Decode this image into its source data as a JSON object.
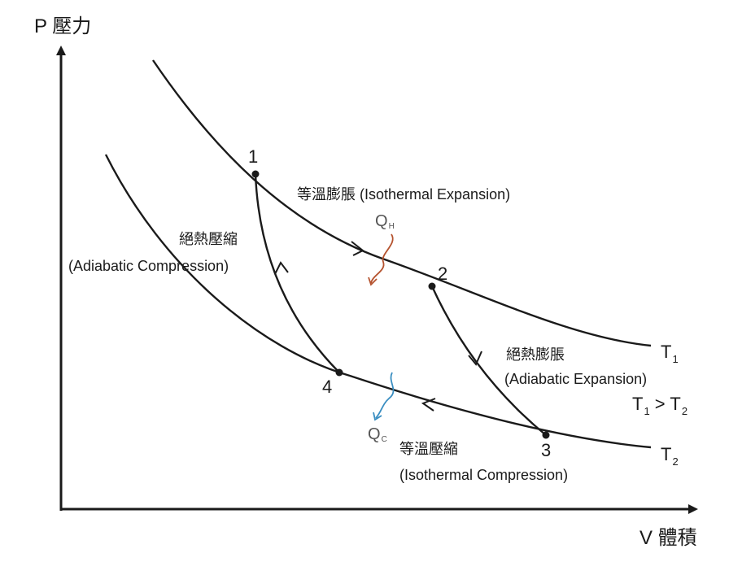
{
  "axes": {
    "y_label": "P 壓力",
    "x_label": "V 體積"
  },
  "points": {
    "p1": "1",
    "p2": "2",
    "p3": "3",
    "p4": "4"
  },
  "processes": {
    "isothermal_expansion": "等溫膨脹 (Isothermal Expansion)",
    "adiabatic_expansion_cn": "絕熱膨脹",
    "adiabatic_expansion_en": "(Adiabatic Expansion)",
    "isothermal_compression_cn": "等溫壓縮",
    "isothermal_compression_en": "(Isothermal Compression)",
    "adiabatic_compression_cn": "絕熱壓縮",
    "adiabatic_compression_en": "(Adiabatic Compression)"
  },
  "temperatures": {
    "t1_main": "T",
    "t1_sub": "1",
    "t2_main": "T",
    "t2_sub": "2",
    "relation": {
      "t1": "T",
      "t1_sub": "1",
      "op": " > T",
      "t2_sub": "2"
    }
  },
  "heat": {
    "qh_main": "Q",
    "qh_sub": "H",
    "qc_main": "Q",
    "qc_sub": "C"
  },
  "colors": {
    "curve": "#1a1a1a",
    "qh_arrow": "#b5532f",
    "qc_arrow": "#3a8ec1"
  }
}
